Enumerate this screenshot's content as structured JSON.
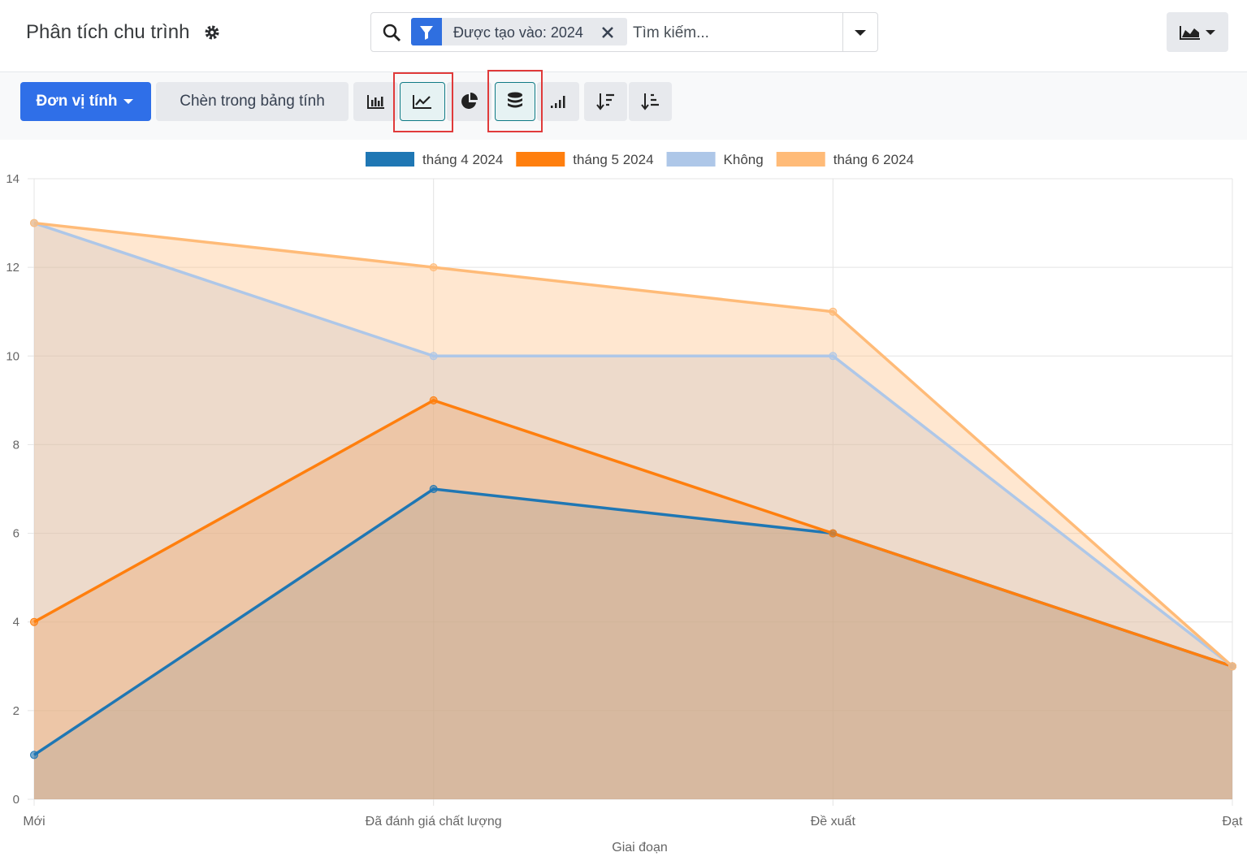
{
  "header": {
    "title": "Phân tích chu trình",
    "filter_facet": "Được tạo vào: 2024",
    "search_placeholder": "Tìm kiếm..."
  },
  "toolbar": {
    "measure_button": "Đơn vị tính",
    "insert_button": "Chèn trong bảng tính"
  },
  "chart_data": {
    "type": "line",
    "stacked": true,
    "fill": true,
    "x_label": "Giai đoạn",
    "categories": [
      "Mới",
      "Đã đánh giá chất lượng",
      "Đề xuất",
      "Đạt"
    ],
    "series": [
      {
        "name": "tháng 4 2024",
        "color": "#1f77b4",
        "values": [
          1,
          7,
          6,
          3
        ]
      },
      {
        "name": "tháng 5 2024",
        "color": "#ff7f0e",
        "values": [
          3,
          2,
          0,
          0
        ]
      },
      {
        "name": "Không",
        "color": "#aec7e8",
        "values": [
          9,
          1,
          4,
          0
        ]
      },
      {
        "name": "tháng 6 2024",
        "color": "#ffbb78",
        "values": [
          0,
          2,
          1,
          0
        ]
      }
    ],
    "ylim": [
      0,
      14
    ],
    "yticks": [
      0,
      2,
      4,
      6,
      8,
      10,
      12,
      14
    ],
    "grid": true,
    "legend": "top"
  }
}
